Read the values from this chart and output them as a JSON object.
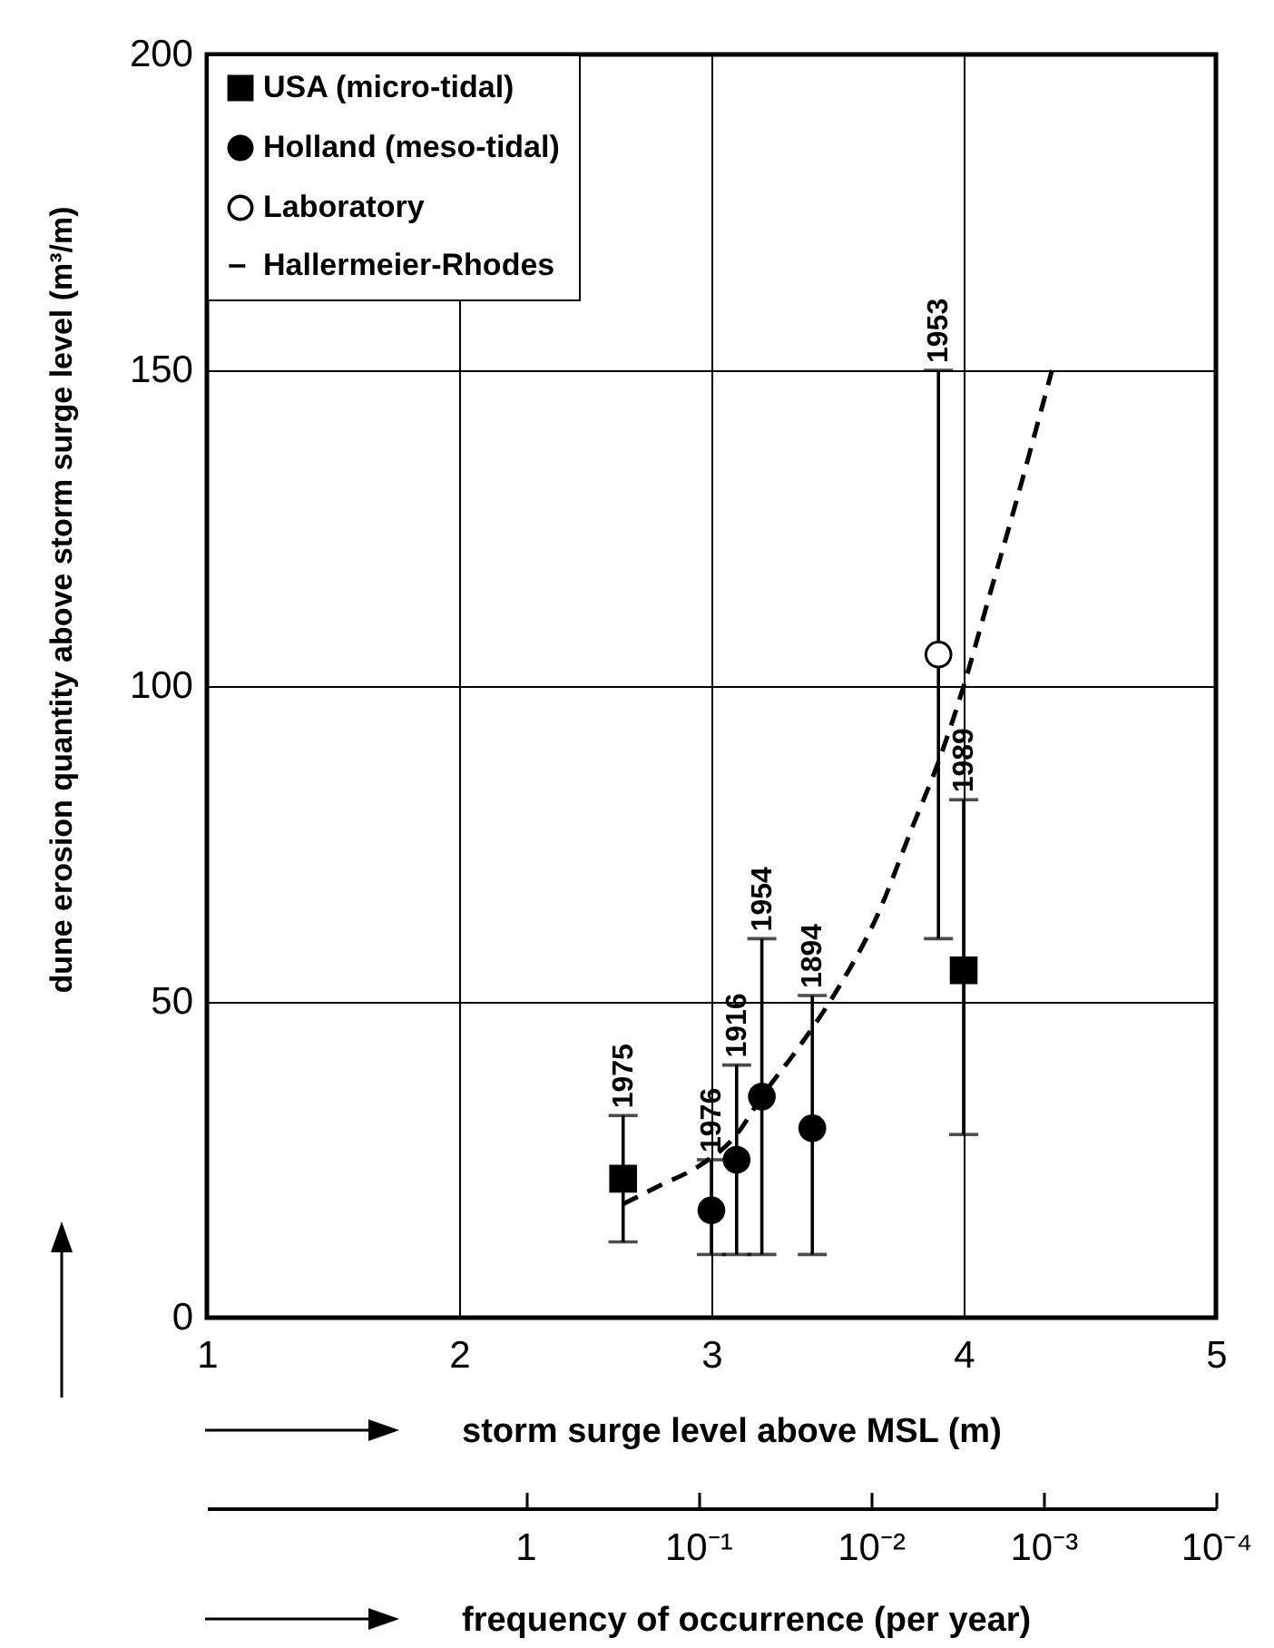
{
  "chart_data": {
    "type": "scatter",
    "xlabel": "storm surge level above MSL (m)",
    "ylabel": "dune erosion quantity above storm surge level (m³/m)",
    "x2label": "frequency of occurrence (per year)",
    "xlim": [
      1,
      5
    ],
    "xticks": [
      1,
      2,
      3,
      4,
      5
    ],
    "ylim": [
      0,
      200
    ],
    "yticks": [
      0,
      50,
      100,
      150,
      200
    ],
    "log": "x2",
    "x2lim": [
      70,
      0.0001
    ],
    "x2ticks": [
      1,
      {
        "value": 0.1,
        "label": "10⁻¹"
      },
      {
        "value": 0.01,
        "label": "10⁻²"
      },
      {
        "value": 0.001,
        "label": "10⁻³"
      },
      {
        "value": 0.0001,
        "label": "10⁻⁴"
      }
    ],
    "grid": true,
    "legend": "top left",
    "series": [
      {
        "name": "USA (micro-tidal)",
        "marker": "square",
        "color": "#000000",
        "x": [
          2.65,
          4.0
        ],
        "values": [
          22,
          55
        ],
        "errors": [
          [
            12,
            32
          ],
          [
            29,
            82
          ]
        ]
      },
      {
        "name": "Holland (meso-tidal)",
        "marker": "circle",
        "color": "#000000",
        "x": [
          3.0,
          3.1,
          3.2,
          3.4
        ],
        "values": [
          17,
          25,
          35,
          30
        ],
        "errors": [
          [
            10,
            25
          ],
          [
            10,
            40
          ],
          [
            10,
            60
          ],
          [
            10,
            51
          ]
        ]
      },
      {
        "name": "Laboratory",
        "marker": "circle",
        "color": "#ffffff",
        "x": [
          3.9
        ],
        "values": [
          105
        ],
        "errors": [
          [
            60,
            150
          ]
        ]
      },
      {
        "name": "Hallermeier-Rhodes",
        "type": "line",
        "line_style": "dashed",
        "color": "#000000",
        "x": [
          2.65,
          2.8,
          2.95,
          3.1,
          3.2,
          3.35,
          3.5,
          3.65,
          3.8,
          3.9,
          4.0,
          4.1,
          4.2,
          4.35
        ],
        "values": [
          18,
          21,
          24,
          29,
          35,
          43,
          52,
          63,
          78,
          88,
          100,
          114,
          128,
          150
        ]
      }
    ],
    "annotations": [
      {
        "text": "1975",
        "x": 2.65,
        "y": 32
      },
      {
        "text": "1976",
        "x": 3.0,
        "y": 25
      },
      {
        "text": "1916",
        "x": 3.1,
        "y": 40
      },
      {
        "text": "1954",
        "x": 3.2,
        "y": 60
      },
      {
        "text": "1894",
        "x": 3.4,
        "y": 51
      },
      {
        "text": "1953",
        "x": 3.9,
        "y": 150
      },
      {
        "text": "1989",
        "x": 4.0,
        "y": 82
      }
    ]
  }
}
